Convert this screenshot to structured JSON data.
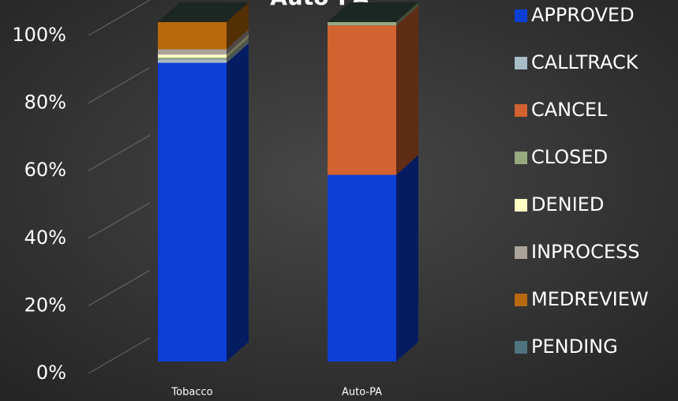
{
  "chart_data": {
    "type": "bar3d_stacked",
    "title": "Auto-PA",
    "categories": [
      "Tobacco",
      "Auto-PA"
    ],
    "series": [
      {
        "name": "APPROVED",
        "color": "#0d3fd6",
        "values": [
          88,
          55
        ]
      },
      {
        "name": "CALLTRACK",
        "color": "#a8bcc6",
        "values": [
          1,
          0
        ]
      },
      {
        "name": "CANCEL",
        "color": "#d2622f",
        "values": [
          0,
          44
        ]
      },
      {
        "name": "CLOSED",
        "color": "#97a97f",
        "values": [
          0.5,
          1
        ]
      },
      {
        "name": "DENIED",
        "color": "#ffffc4",
        "values": [
          1,
          0
        ]
      },
      {
        "name": "INPROCESS",
        "color": "#aaa49b",
        "values": [
          1.5,
          0
        ]
      },
      {
        "name": "MEDREVIEW",
        "color": "#b8690b",
        "values": [
          8,
          0
        ]
      },
      {
        "name": "PENDING",
        "color": "#4f7480",
        "values": [
          0,
          0
        ]
      }
    ],
    "ylim": [
      0,
      100
    ],
    "yticks": [
      {
        "value": 0,
        "label": "0%"
      },
      {
        "value": 20,
        "label": "20%"
      },
      {
        "value": 40,
        "label": "40%"
      },
      {
        "value": 60,
        "label": "60%"
      },
      {
        "value": 80,
        "label": "80%"
      },
      {
        "value": 100,
        "label": "100%"
      }
    ],
    "grid": true,
    "legend": "right"
  }
}
